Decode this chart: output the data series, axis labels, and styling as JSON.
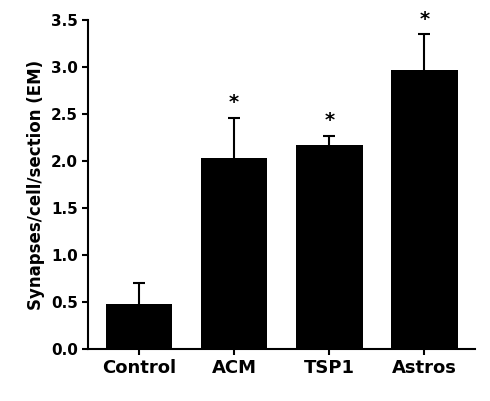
{
  "categories": [
    "Control",
    "ACM",
    "TSP1",
    "Astros"
  ],
  "values": [
    0.48,
    2.03,
    2.17,
    2.97
  ],
  "errors": [
    0.22,
    0.43,
    0.1,
    0.38
  ],
  "bar_color": "#000000",
  "bar_width": 0.7,
  "ylabel": "Synapses/cell/section (EM)",
  "ylim": [
    0,
    3.5
  ],
  "yticks": [
    0,
    0.5,
    1.0,
    1.5,
    2.0,
    2.5,
    3.0,
    3.5
  ],
  "significance": [
    false,
    true,
    true,
    true
  ],
  "sig_symbol": "*",
  "background_color": "#ffffff",
  "label_fontsize": 12,
  "tick_fontsize": 11,
  "sig_fontsize": 14,
  "xticklabel_fontsize": 13
}
